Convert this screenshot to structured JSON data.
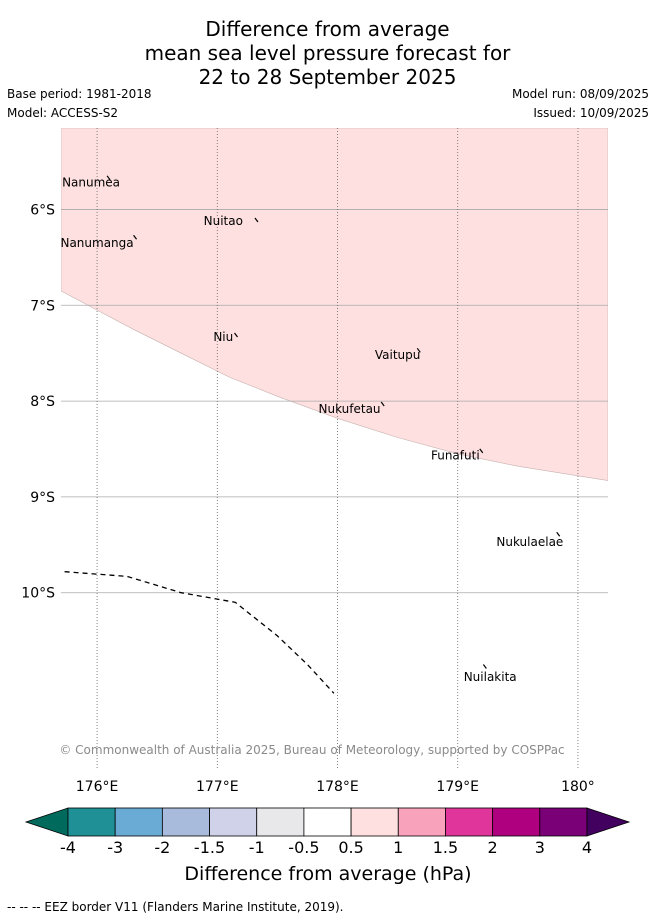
{
  "title": {
    "line1": "Difference from average",
    "line2": "mean sea level pressure forecast for",
    "line3": "22 to 28 September 2025"
  },
  "info": {
    "base_period": "Base period: 1981-2018",
    "model": "Model: ACCESS-S2",
    "model_run": "Model run: 08/09/2025",
    "issued": "Issued: 10/09/2025"
  },
  "map": {
    "lon_range": [
      175.7,
      180.25
    ],
    "lat_range": [
      -11.85,
      -5.15
    ],
    "lon_ticks": [
      {
        "value": 176,
        "label": "176°E"
      },
      {
        "value": 177,
        "label": "177°E"
      },
      {
        "value": 178,
        "label": "178°E"
      },
      {
        "value": 179,
        "label": "179°E"
      },
      {
        "value": 180,
        "label": "180°"
      }
    ],
    "lat_ticks": [
      {
        "value": -6,
        "label": "6°S"
      },
      {
        "value": -7,
        "label": "7°S"
      },
      {
        "value": -8,
        "label": "8°S"
      },
      {
        "value": -9,
        "label": "9°S"
      },
      {
        "value": -10,
        "label": "10°S"
      }
    ],
    "anomaly_region": {
      "category": "0.5 to 1",
      "color": "#fde0df",
      "southern_boundary": [
        [
          175.7,
          -6.85
        ],
        [
          176.0,
          -7.05
        ],
        [
          176.3,
          -7.25
        ],
        [
          176.7,
          -7.5
        ],
        [
          177.1,
          -7.75
        ],
        [
          177.5,
          -7.95
        ],
        [
          178.0,
          -8.18
        ],
        [
          178.5,
          -8.38
        ],
        [
          179.0,
          -8.55
        ],
        [
          179.5,
          -8.68
        ],
        [
          180.0,
          -8.78
        ],
        [
          180.25,
          -8.83
        ]
      ]
    },
    "eez_border": [
      [
        175.73,
        -9.78
      ],
      [
        176.25,
        -9.83
      ],
      [
        176.7,
        -10.0
      ],
      [
        177.15,
        -10.1
      ],
      [
        177.5,
        -10.45
      ],
      [
        177.75,
        -10.75
      ],
      [
        177.97,
        -11.05
      ]
    ],
    "islands": [
      {
        "name": "Nanumea",
        "lon": 176.1,
        "lat": -5.67,
        "label_lon": 175.95,
        "label_lat": -5.72
      },
      {
        "name": "Nuitao",
        "lon": 177.33,
        "lat": -6.11,
        "label_lon": 177.05,
        "label_lat": -6.12
      },
      {
        "name": "Nanumanga",
        "lon": 176.32,
        "lat": -6.29,
        "label_lon": 176.0,
        "label_lat": -6.35
      },
      {
        "name": "Niu",
        "lon": 177.16,
        "lat": -7.31,
        "label_lon": 177.05,
        "label_lat": -7.33
      },
      {
        "name": "Vaitupu",
        "lon": 178.68,
        "lat": -7.47,
        "label_lon": 178.5,
        "label_lat": -7.52
      },
      {
        "name": "Nukufetau",
        "lon": 178.38,
        "lat": -8.03,
        "label_lon": 178.1,
        "label_lat": -8.08
      },
      {
        "name": "Funafuti",
        "lon": 179.2,
        "lat": -8.52,
        "label_lon": 178.98,
        "label_lat": -8.57
      },
      {
        "name": "Nukulaelae",
        "lon": 179.84,
        "lat": -9.39,
        "label_lon": 179.6,
        "label_lat": -9.47
      },
      {
        "name": "Nuilakita",
        "lon": 179.23,
        "lat": -10.77,
        "label_lon": 179.27,
        "label_lat": -10.88
      }
    ],
    "copyright": "© Commonwealth of Australia 2025, Bureau of Meteorology, supported by COSPPac"
  },
  "legend": {
    "below_color": "#006a5c",
    "above_color": "#42005f",
    "bins": [
      {
        "color": "#1f9196"
      },
      {
        "color": "#6aabd5"
      },
      {
        "color": "#a8bbdd"
      },
      {
        "color": "#d0d2e9"
      },
      {
        "color": "#e8e7ea"
      },
      {
        "color": "#ffffff"
      },
      {
        "color": "#fde0df"
      },
      {
        "color": "#f9a2bb"
      },
      {
        "color": "#e0359a"
      },
      {
        "color": "#ae007f"
      },
      {
        "color": "#7a0078"
      }
    ],
    "ticks": [
      "-4",
      "-3",
      "-2",
      "-1.5",
      "-1",
      "-0.5",
      "0.5",
      "1",
      "1.5",
      "2",
      "3",
      "4"
    ],
    "label": "Difference from average (hPa)"
  },
  "footer": "--  --  -- EEZ border V11 (Flanders Marine Institute, 2019)."
}
